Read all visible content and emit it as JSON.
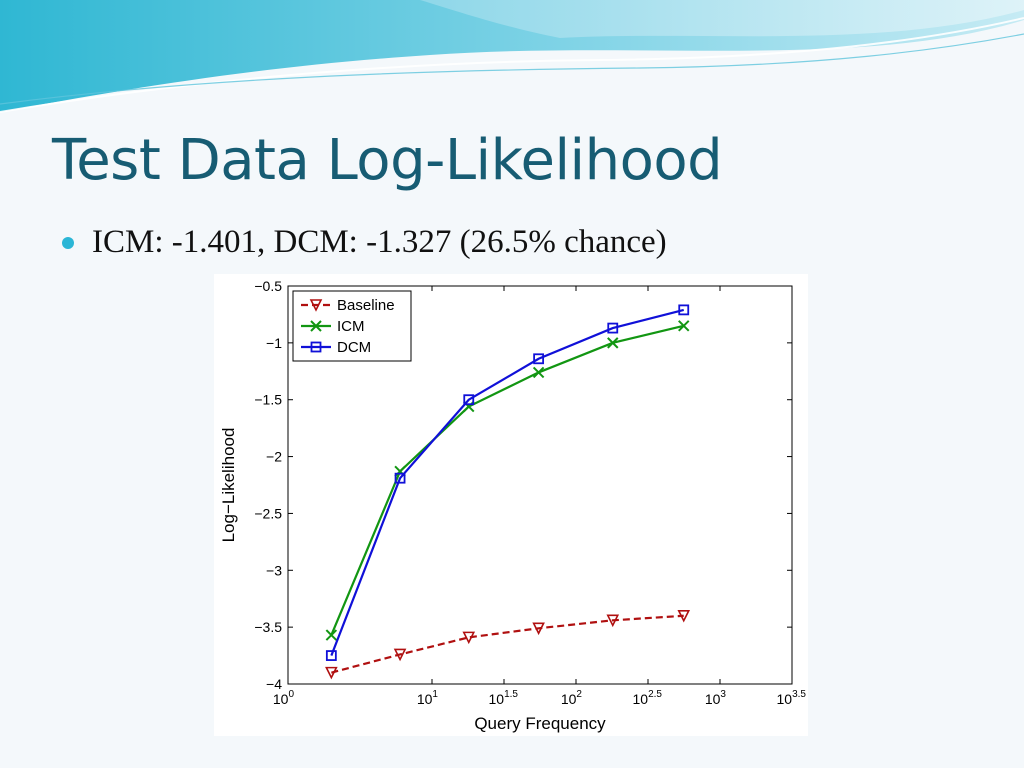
{
  "slide": {
    "title": "Test Data Log-Likelihood",
    "bullet": "ICM: -1.401, DCM: -1.327 (26.5% chance)"
  },
  "colors": {
    "title": "#175c73",
    "bullet": "#2bb6d6",
    "baseline": "#b01010",
    "icm": "#129612",
    "dcm": "#1010d8"
  },
  "chart_data": {
    "type": "line",
    "title": "",
    "xlabel": "Query Frequency",
    "ylabel": "Log−Likelihood",
    "x_scale": "log10",
    "xlim": [
      1,
      3162.28
    ],
    "ylim": [
      -4,
      -0.5
    ],
    "x": [
      2,
      6,
      18,
      55,
      180,
      560
    ],
    "x_ticks": [
      {
        "value": 1,
        "base": "10",
        "exp": "0"
      },
      {
        "value": 10,
        "base": "10",
        "exp": "1"
      },
      {
        "value": 31.62,
        "base": "10",
        "exp": "1.5"
      },
      {
        "value": 100,
        "base": "10",
        "exp": "2"
      },
      {
        "value": 316.23,
        "base": "10",
        "exp": "2.5"
      },
      {
        "value": 1000,
        "base": "10",
        "exp": "3"
      },
      {
        "value": 3162.28,
        "base": "10",
        "exp": "3.5"
      }
    ],
    "y_ticks": [
      {
        "value": -0.5,
        "label": "−0.5"
      },
      {
        "value": -1,
        "label": "−1"
      },
      {
        "value": -1.5,
        "label": "−1.5"
      },
      {
        "value": -2,
        "label": "−2"
      },
      {
        "value": -2.5,
        "label": "−2.5"
      },
      {
        "value": -3,
        "label": "−3"
      },
      {
        "value": -3.5,
        "label": "−3.5"
      },
      {
        "value": -4,
        "label": "−4"
      }
    ],
    "grid": false,
    "legend_position": "top-left",
    "series": [
      {
        "name": "Baseline",
        "key": "baseline",
        "marker": "triangle-down",
        "dash": true,
        "values": [
          -3.9,
          -3.74,
          -3.59,
          -3.51,
          -3.44,
          -3.4
        ]
      },
      {
        "name": "ICM",
        "key": "icm",
        "marker": "x",
        "dash": false,
        "values": [
          -3.57,
          -2.13,
          -1.56,
          -1.26,
          -1.0,
          -0.85
        ]
      },
      {
        "name": "DCM",
        "key": "dcm",
        "marker": "square",
        "dash": false,
        "values": [
          -3.75,
          -2.19,
          -1.5,
          -1.14,
          -0.87,
          -0.71
        ]
      }
    ]
  }
}
